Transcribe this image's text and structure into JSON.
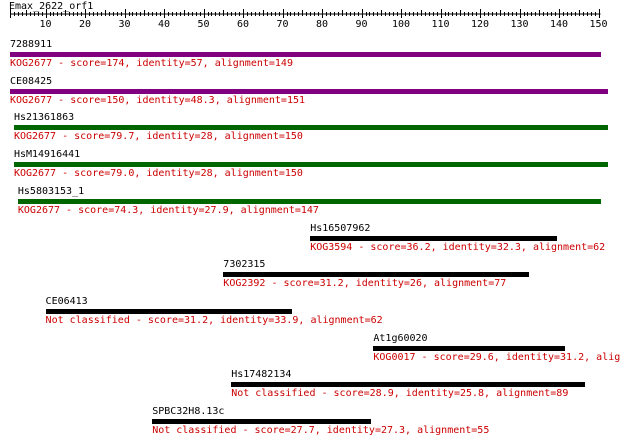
{
  "query": {
    "name": "Emax_2622_orf1",
    "ruler_start": 1,
    "ruler_end": 150,
    "tick_labels": [
      10,
      20,
      30,
      40,
      50,
      60,
      70,
      80,
      90,
      100,
      110,
      120,
      130,
      140,
      150
    ]
  },
  "colors": {
    "text": "#000000",
    "description": "#cc0000",
    "purple": "#800080",
    "green": "#006600",
    "black": "#000000"
  },
  "hits": [
    {
      "name": "7288911",
      "description": "KOG2677 - score=174, identity=57, alignment=149",
      "start": 1,
      "end": 150,
      "bar_color": "purple"
    },
    {
      "name": "CE08425",
      "description": "KOG2677 - score=150, identity=48.3, alignment=151",
      "start": 1,
      "end": 152,
      "bar_color": "purple"
    },
    {
      "name": "Hs21361863",
      "description": "KOG2677 - score=79.7, identity=28, alignment=150",
      "start": 2,
      "end": 152,
      "bar_color": "green"
    },
    {
      "name": "HsM14916441",
      "description": "KOG2677 - score=79.0, identity=28, alignment=150",
      "start": 2,
      "end": 152,
      "bar_color": "green"
    },
    {
      "name": "Hs5803153_1",
      "description": "KOG2677 - score=74.3, identity=27.9, alignment=147",
      "start": 3,
      "end": 150,
      "bar_color": "green"
    },
    {
      "name": "Hs16507962",
      "description": "KOG3594 - score=36.2, identity=32.3, alignment=62",
      "start": 77,
      "end": 139,
      "bar_color": "black"
    },
    {
      "name": "7302315",
      "description": "KOG2392 - score=31.2, identity=26, alignment=77",
      "start": 55,
      "end": 132,
      "bar_color": "black"
    },
    {
      "name": "CE06413",
      "description": "Not classified - score=31.2, identity=33.9, alignment=62",
      "start": 10,
      "end": 72,
      "bar_color": "black"
    },
    {
      "name": "At1g60020",
      "description": "KOG0017 - score=29.6, identity=31.2, alig",
      "start": 93,
      "end": 141,
      "bar_color": "black"
    },
    {
      "name": "Hs17482134",
      "description": "Not classified - score=28.9, identity=25.8, alignment=89",
      "start": 57,
      "end": 146,
      "bar_color": "black"
    },
    {
      "name": "SPBC32H8.13c",
      "description": "Not classified - score=27.7, identity=27.3, alignment=55",
      "start": 37,
      "end": 92,
      "bar_color": "black"
    }
  ]
}
